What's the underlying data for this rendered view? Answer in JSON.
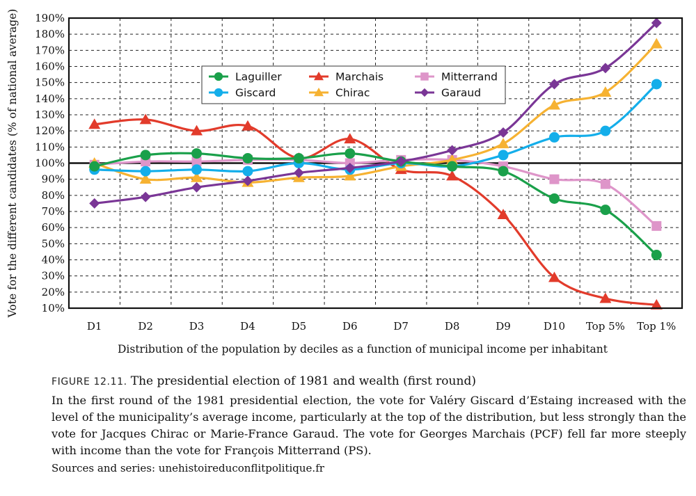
{
  "figure": {
    "label": "FIGURE 12.11.",
    "title": "The presidential election of 1981 and wealth (first round)",
    "description": "In the first round of the 1981 presidential election, the vote for Valéry Giscard d’Estaing increased with the level of the municipality’s average income, particularly at the top of the distribution, but less strongly than the vote for Jacques Chirac or Marie-France Garaud. The vote for Georges Marchais (PCF) fell far more steeply with income than the vote for François Mitterrand (PS).",
    "source": "Sources and series: unehistoireduconflitpolitique.fr"
  },
  "chart_data": {
    "type": "line",
    "xlabel": "Distribution of the population by deciles as a function of municipal income per inhabitant",
    "ylabel": "Vote for the different candidates (% of national average)",
    "categories": [
      "D1",
      "D2",
      "D3",
      "D4",
      "D5",
      "D6",
      "D7",
      "D8",
      "D9",
      "D10",
      "Top 5%",
      "Top 1%"
    ],
    "ylim": [
      10,
      190
    ],
    "yticks": [
      10,
      20,
      30,
      40,
      50,
      60,
      70,
      80,
      90,
      100,
      110,
      120,
      130,
      140,
      150,
      160,
      170,
      180,
      190
    ],
    "ytick_suffix": "%",
    "grid": "dashed",
    "reference_line": 100,
    "legend_position": "upper-center",
    "series": [
      {
        "name": "Laguiller",
        "color": "#1aa04a",
        "marker": "circle",
        "values": [
          98,
          105,
          106,
          103,
          103,
          106,
          101,
          98,
          95,
          78,
          71,
          43
        ]
      },
      {
        "name": "Giscard",
        "color": "#14aeea",
        "marker": "circle",
        "values": [
          96,
          95,
          96,
          95,
          100,
          96,
          100,
          98,
          105,
          116,
          120,
          149
        ]
      },
      {
        "name": "Marchais",
        "color": "#e23b2b",
        "marker": "triangle",
        "values": [
          124,
          127,
          120,
          123,
          103,
          115,
          96,
          92,
          68,
          29,
          16,
          12
        ]
      },
      {
        "name": "Chirac",
        "color": "#f6b232",
        "marker": "triangle",
        "values": [
          100,
          90,
          91,
          88,
          91,
          92,
          98,
          102,
          112,
          136,
          144,
          174
        ]
      },
      {
        "name": "Mitterrand",
        "color": "#de95c9",
        "marker": "square",
        "values": [
          99,
          101,
          101,
          102,
          102,
          100,
          102,
          102,
          98,
          90,
          87,
          61
        ]
      },
      {
        "name": "Garaud",
        "color": "#7a3696",
        "marker": "diamond",
        "values": [
          75,
          79,
          85,
          89,
          94,
          97,
          101,
          108,
          119,
          149,
          159,
          187
        ]
      }
    ]
  }
}
